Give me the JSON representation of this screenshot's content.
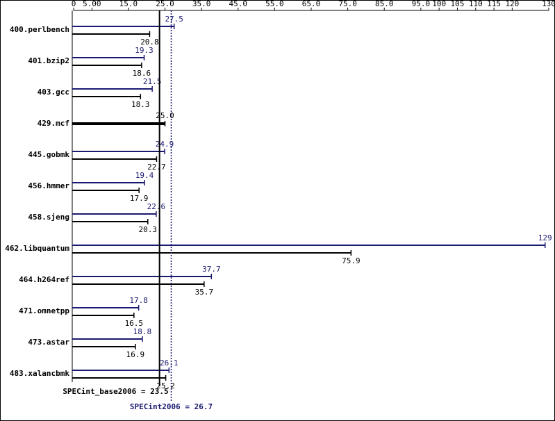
{
  "chart_data": {
    "type": "bar",
    "orientation": "horizontal",
    "categories": [
      "400.perlbench",
      "401.bzip2",
      "403.gcc",
      "429.mcf",
      "445.gobmk",
      "456.hmmer",
      "458.sjeng",
      "462.libquantum",
      "464.h264ref",
      "471.omnetpp",
      "473.astar",
      "483.xalancbmk"
    ],
    "series": [
      {
        "name": "SPECint2006",
        "color": "#191970",
        "values": [
          27.5,
          19.3,
          21.5,
          null,
          24.9,
          19.4,
          22.6,
          129,
          37.7,
          17.8,
          18.8,
          26.1
        ]
      },
      {
        "name": "SPECint_base2006",
        "color": "#000000",
        "values": [
          20.8,
          18.6,
          18.3,
          25,
          22.7,
          17.9,
          20.3,
          75.9,
          35.7,
          16.5,
          16.9,
          25.2
        ],
        "value_labels": [
          "20.8",
          "18.6",
          "18.3",
          "25.0",
          "22.7",
          "17.9",
          "20.3",
          "75.9",
          "35.7",
          "16.5",
          "16.9",
          "25.2"
        ]
      }
    ],
    "reference_lines": [
      {
        "label": "SPECint_base2006 = 23.5",
        "value": 23.5,
        "color": "#000000",
        "style": "solid"
      },
      {
        "label": "SPECint2006 = 26.7",
        "value": 26.7,
        "color": "#191970",
        "style": "dotted"
      }
    ],
    "xlim": [
      0,
      130
    ],
    "xticks": [
      0,
      {
        "value": 5,
        "label": "5.00"
      },
      {
        "value": 15,
        "label": "15.0"
      },
      {
        "value": 25,
        "label": "25.0"
      },
      {
        "value": 35,
        "label": "35.0"
      },
      {
        "value": 45,
        "label": "45.0"
      },
      {
        "value": 55,
        "label": "55.0"
      },
      {
        "value": 65,
        "label": "65.0"
      },
      {
        "value": 75,
        "label": "75.0"
      },
      {
        "value": 85,
        "label": "85.0"
      },
      {
        "value": 95,
        "label": "95.0"
      },
      100,
      105,
      110,
      115,
      120,
      130
    ]
  }
}
